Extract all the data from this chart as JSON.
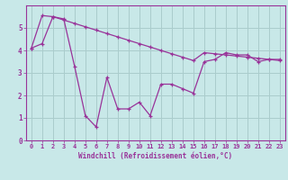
{
  "x_line1": [
    0,
    1,
    2,
    3,
    4,
    5,
    6,
    7,
    8,
    9,
    10,
    11,
    12,
    13,
    14,
    15,
    16,
    17,
    18,
    19,
    20,
    21,
    22,
    23
  ],
  "y_line1": [
    4.1,
    4.3,
    5.5,
    5.4,
    3.3,
    1.1,
    0.6,
    2.8,
    1.4,
    1.4,
    1.7,
    1.1,
    2.5,
    2.5,
    2.3,
    2.1,
    3.5,
    3.6,
    3.9,
    3.8,
    3.8,
    3.5,
    3.6,
    3.6
  ],
  "x_line2": [
    0,
    1,
    2,
    3,
    4,
    5,
    6,
    7,
    8,
    9,
    10,
    11,
    12,
    13,
    14,
    15,
    16,
    17,
    18,
    19,
    20,
    21,
    22,
    23
  ],
  "y_line2": [
    4.1,
    5.55,
    5.5,
    5.35,
    5.2,
    5.05,
    4.9,
    4.75,
    4.6,
    4.45,
    4.3,
    4.15,
    4.0,
    3.85,
    3.7,
    3.55,
    3.9,
    3.85,
    3.8,
    3.75,
    3.7,
    3.65,
    3.6,
    3.55
  ],
  "color": "#993399",
  "bg_color": "#c8e8e8",
  "grid_color": "#aacccc",
  "xlabel": "Windchill (Refroidissement éolien,°C)",
  "ylim": [
    0,
    6
  ],
  "xlim": [
    -0.5,
    23.5
  ],
  "yticks": [
    0,
    1,
    2,
    3,
    4,
    5
  ],
  "xticks": [
    0,
    1,
    2,
    3,
    4,
    5,
    6,
    7,
    8,
    9,
    10,
    11,
    12,
    13,
    14,
    15,
    16,
    17,
    18,
    19,
    20,
    21,
    22,
    23
  ],
  "xlabel_fontsize": 5.5,
  "tick_fontsize": 5,
  "ytick_fontsize": 5.5
}
